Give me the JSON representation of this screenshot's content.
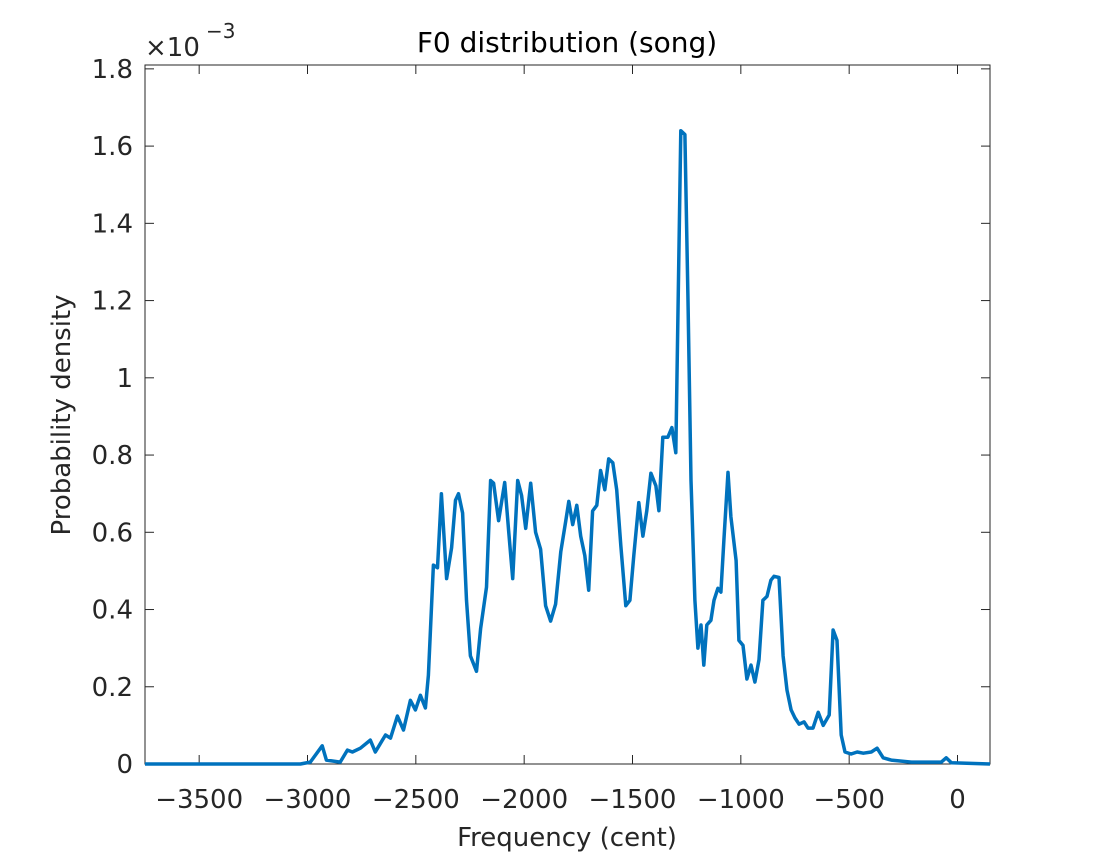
{
  "chart_data": {
    "type": "line",
    "title": "F0 distribution (song)",
    "xlabel": "Frequency (cent)",
    "ylabel": "Probability density",
    "y_multiplier": {
      "base": "×10",
      "exponent": "−3"
    },
    "xlim": [
      -3750,
      150
    ],
    "ylim": [
      0,
      1.81
    ],
    "xticks": [
      {
        "value": -3500,
        "label": "−3500"
      },
      {
        "value": -3000,
        "label": "−3000"
      },
      {
        "value": -2500,
        "label": "−2500"
      },
      {
        "value": -2000,
        "label": "−2000"
      },
      {
        "value": -1500,
        "label": "−1500"
      },
      {
        "value": -1000,
        "label": "−1000"
      },
      {
        "value": -500,
        "label": "−500"
      },
      0
    ],
    "yticks": [
      0,
      0.2,
      0.4,
      0.6,
      0.8,
      1,
      1.2,
      1.4,
      1.6,
      1.8
    ],
    "grid": false,
    "series": [
      {
        "color": "#0072bd",
        "x": [
          -3750,
          -3033,
          -2987,
          -2932,
          -2913,
          -2849,
          -2816,
          -2793,
          -2756,
          -2710,
          -2687,
          -2640,
          -2617,
          -2585,
          -2557,
          -2525,
          -2502,
          -2479,
          -2456,
          -2442,
          -2419,
          -2400,
          -2382,
          -2358,
          -2335,
          -2317,
          -2303,
          -2284,
          -2266,
          -2248,
          -2220,
          -2201,
          -2174,
          -2155,
          -2141,
          -2118,
          -2090,
          -2072,
          -2053,
          -2030,
          -2012,
          -1993,
          -1970,
          -1947,
          -1924,
          -1901,
          -1878,
          -1855,
          -1831,
          -1808,
          -1794,
          -1776,
          -1757,
          -1739,
          -1720,
          -1702,
          -1684,
          -1665,
          -1647,
          -1628,
          -1610,
          -1591,
          -1573,
          -1554,
          -1531,
          -1512,
          -1494,
          -1471,
          -1452,
          -1434,
          -1415,
          -1392,
          -1378,
          -1360,
          -1337,
          -1318,
          -1300,
          -1277,
          -1258,
          -1244,
          -1230,
          -1212,
          -1198,
          -1184,
          -1171,
          -1157,
          -1138,
          -1124,
          -1106,
          -1092,
          -1078,
          -1059,
          -1046,
          -1022,
          -1009,
          -990,
          -972,
          -953,
          -935,
          -916,
          -898,
          -879,
          -861,
          -847,
          -824,
          -805,
          -787,
          -768,
          -750,
          -731,
          -708,
          -690,
          -667,
          -643,
          -620,
          -592,
          -574,
          -556,
          -537,
          -519,
          -491,
          -463,
          -435,
          -398,
          -371,
          -343,
          -306,
          -213,
          -144,
          -75,
          -52,
          -28,
          150
        ],
        "values": [
          0,
          0,
          0.005,
          0.047,
          0.01,
          0.005,
          0.036,
          0.031,
          0.041,
          0.062,
          0.031,
          0.075,
          0.067,
          0.124,
          0.088,
          0.165,
          0.14,
          0.178,
          0.145,
          0.23,
          0.515,
          0.508,
          0.7,
          0.48,
          0.56,
          0.683,
          0.7,
          0.65,
          0.424,
          0.28,
          0.24,
          0.35,
          0.458,
          0.734,
          0.727,
          0.63,
          0.729,
          0.605,
          0.48,
          0.734,
          0.695,
          0.61,
          0.727,
          0.6,
          0.556,
          0.41,
          0.37,
          0.414,
          0.55,
          0.63,
          0.68,
          0.62,
          0.67,
          0.59,
          0.54,
          0.45,
          0.655,
          0.67,
          0.76,
          0.71,
          0.79,
          0.78,
          0.71,
          0.566,
          0.41,
          0.424,
          0.54,
          0.677,
          0.59,
          0.656,
          0.753,
          0.72,
          0.656,
          0.846,
          0.846,
          0.871,
          0.806,
          1.64,
          1.63,
          1.2,
          0.734,
          0.424,
          0.3,
          0.36,
          0.256,
          0.36,
          0.372,
          0.424,
          0.455,
          0.445,
          0.58,
          0.755,
          0.64,
          0.527,
          0.32,
          0.307,
          0.22,
          0.256,
          0.212,
          0.27,
          0.424,
          0.434,
          0.476,
          0.486,
          0.483,
          0.28,
          0.191,
          0.14,
          0.119,
          0.103,
          0.109,
          0.093,
          0.093,
          0.134,
          0.1,
          0.127,
          0.347,
          0.32,
          0.075,
          0.031,
          0.026,
          0.031,
          0.028,
          0.031,
          0.041,
          0.016,
          0.01,
          0.005,
          0.005,
          0.005,
          0.016,
          0.003,
          0
        ]
      }
    ]
  }
}
